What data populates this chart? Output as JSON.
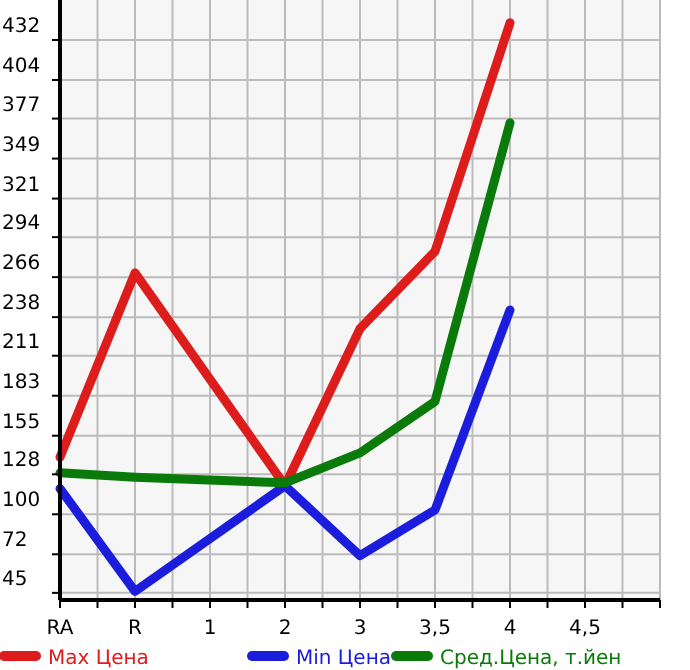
{
  "chart_data": {
    "type": "line",
    "categories": [
      "RA",
      "R",
      "1",
      "2",
      "3",
      "3,5",
      "4",
      "4,5"
    ],
    "series": [
      {
        "name": "Max Цена",
        "color": "#dd1c1c",
        "values": [
          140,
          269,
          null,
          120,
          230,
          284,
          444,
          null
        ]
      },
      {
        "name": "Min Цена",
        "color": "#1c1cdd",
        "values": [
          118,
          46,
          null,
          120,
          71,
          103,
          243,
          null
        ]
      },
      {
        "name": "Сред.Цена, т.йен",
        "color": "#0a7a0a",
        "values": [
          129,
          126,
          null,
          122,
          143,
          179,
          374,
          null
        ]
      }
    ],
    "ylim": [
      40,
      460
    ],
    "yticks": [
      45,
      72,
      100,
      128,
      155,
      183,
      211,
      238,
      266,
      294,
      321,
      349,
      377,
      404,
      432
    ],
    "grid": true,
    "legend": "bottom",
    "marker": "none",
    "line_style": "solid"
  }
}
